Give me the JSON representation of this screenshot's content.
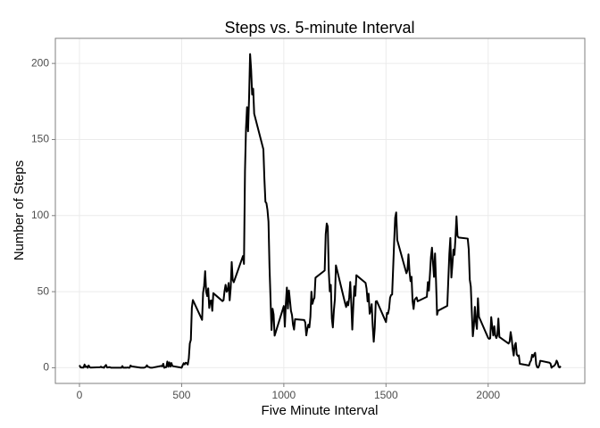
{
  "chart_data": {
    "type": "line",
    "title": "Steps vs. 5-minute Interval",
    "x_label": "Five Minute Interval",
    "y_label": "Number of Steps",
    "x": [
      0,
      5,
      10,
      15,
      20,
      25,
      30,
      35,
      40,
      45,
      50,
      55,
      100,
      105,
      110,
      115,
      120,
      125,
      130,
      135,
      140,
      145,
      150,
      155,
      200,
      205,
      210,
      215,
      220,
      225,
      230,
      235,
      240,
      245,
      250,
      255,
      300,
      305,
      310,
      315,
      320,
      325,
      330,
      335,
      340,
      345,
      350,
      355,
      400,
      405,
      410,
      415,
      420,
      425,
      430,
      435,
      440,
      445,
      450,
      455,
      500,
      505,
      510,
      515,
      520,
      525,
      530,
      535,
      540,
      545,
      550,
      555,
      600,
      605,
      610,
      615,
      620,
      625,
      630,
      635,
      640,
      645,
      650,
      655,
      700,
      705,
      710,
      715,
      720,
      725,
      730,
      735,
      740,
      745,
      750,
      755,
      800,
      805,
      810,
      815,
      820,
      825,
      830,
      835,
      840,
      845,
      850,
      855,
      900,
      905,
      910,
      915,
      920,
      925,
      930,
      935,
      940,
      945,
      950,
      955,
      1000,
      1005,
      1010,
      1015,
      1020,
      1025,
      1030,
      1035,
      1040,
      1045,
      1050,
      1055,
      1100,
      1105,
      1110,
      1115,
      1120,
      1125,
      1130,
      1135,
      1140,
      1145,
      1150,
      1155,
      1200,
      1205,
      1210,
      1215,
      1220,
      1225,
      1230,
      1235,
      1240,
      1245,
      1250,
      1255,
      1300,
      1305,
      1310,
      1315,
      1320,
      1325,
      1330,
      1335,
      1340,
      1345,
      1350,
      1355,
      1400,
      1405,
      1410,
      1415,
      1420,
      1425,
      1430,
      1435,
      1440,
      1445,
      1450,
      1455,
      1500,
      1505,
      1510,
      1515,
      1520,
      1525,
      1530,
      1535,
      1540,
      1545,
      1550,
      1555,
      1600,
      1605,
      1610,
      1615,
      1620,
      1625,
      1630,
      1635,
      1640,
      1645,
      1650,
      1655,
      1700,
      1705,
      1710,
      1715,
      1720,
      1725,
      1730,
      1735,
      1740,
      1745,
      1750,
      1755,
      1800,
      1805,
      1810,
      1815,
      1820,
      1825,
      1830,
      1835,
      1840,
      1845,
      1850,
      1855,
      1900,
      1905,
      1910,
      1915,
      1920,
      1925,
      1930,
      1935,
      1940,
      1945,
      1950,
      1955,
      2000,
      2005,
      2010,
      2015,
      2020,
      2025,
      2030,
      2035,
      2040,
      2045,
      2050,
      2055,
      2100,
      2105,
      2110,
      2115,
      2120,
      2125,
      2130,
      2135,
      2140,
      2145,
      2150,
      2155,
      2200,
      2205,
      2210,
      2215,
      2220,
      2225,
      2230,
      2235,
      2240,
      2245,
      2250,
      2255,
      2300,
      2305,
      2310,
      2315,
      2320,
      2325,
      2330,
      2335,
      2340,
      2345,
      2350,
      2355
    ],
    "values": [
      1.7,
      0.3,
      0.1,
      0.2,
      0.1,
      2.1,
      0.5,
      0.9,
      0,
      1.5,
      0.3,
      0.1,
      0.3,
      0.7,
      0.2,
      0.3,
      0,
      1.1,
      1.8,
      0.2,
      0.2,
      0.4,
      0.3,
      0,
      0,
      0,
      1.1,
      0,
      0,
      0.1,
      0,
      0.2,
      0,
      0,
      1.5,
      0.9,
      0,
      0,
      0,
      0,
      0.2,
      0.6,
      1.6,
      0.6,
      0.5,
      0.1,
      0,
      0,
      1.2,
      0.9,
      2.6,
      0,
      0.3,
      0.4,
      4.1,
      0.7,
      3.5,
      0.8,
      3.1,
      1.1,
      0,
      1.6,
      3.0,
      2.2,
      3.3,
      3.0,
      2.1,
      6.1,
      16.0,
      18.3,
      39.5,
      44.5,
      31.5,
      49.3,
      53.8,
      63.5,
      50.0,
      47.1,
      52.2,
      39.3,
      44.0,
      44.2,
      37.4,
      49.0,
      43.8,
      44.4,
      50.5,
      54.5,
      49.9,
      51.0,
      55.7,
      44.3,
      52.3,
      69.5,
      57.8,
      56.2,
      73.4,
      68.2,
      129.4,
      157.5,
      171.2,
      155.4,
      177.3,
      206.2,
      195.9,
      179.6,
      183.4,
      167.0,
      143.5,
      124.0,
      109.1,
      108.1,
      103.7,
      96.0,
      66.2,
      45.2,
      24.8,
      38.8,
      35.0,
      21.1,
      40.6,
      27.0,
      42.4,
      52.7,
      38.9,
      50.8,
      44.3,
      37.4,
      34.7,
      28.3,
      25.1,
      31.9,
      31.4,
      29.7,
      21.3,
      25.5,
      28.4,
      26.5,
      33.4,
      50.0,
      42.0,
      44.6,
      46.0,
      59.2,
      63.9,
      87.7,
      94.8,
      92.8,
      63.4,
      50.2,
      54.5,
      32.4,
      26.5,
      37.7,
      45.1,
      67.3,
      42.3,
      39.9,
      43.3,
      41.0,
      46.2,
      56.4,
      42.8,
      25.1,
      40.0,
      53.5,
      47.3,
      60.8,
      55.8,
      52.0,
      43.6,
      48.7,
      35.5,
      37.5,
      41.8,
      27.5,
      17.1,
      26.1,
      43.6,
      43.8,
      30.0,
      36.1,
      35.5,
      38.8,
      46.0,
      47.8,
      48.1,
      65.3,
      82.9,
      98.7,
      102.1,
      84.0,
      62.1,
      64.1,
      74.5,
      63.2,
      56.9,
      59.8,
      43.9,
      38.6,
      44.7,
      45.5,
      46.2,
      43.7,
      46.6,
      56.3,
      50.7,
      61.2,
      72.7,
      78.9,
      68.9,
      59.7,
      75.1,
      56.5,
      34.8,
      37.5,
      40.7,
      58.0,
      74.7,
      85.3,
      59.3,
      67.8,
      77.7,
      74.2,
      85.3,
      99.5,
      86.6,
      85.6,
      84.9,
      77.8,
      58.0,
      53.4,
      36.3,
      20.7,
      27.4,
      40.0,
      30.2,
      25.5,
      45.7,
      33.5,
      19.6,
      19.0,
      19.3,
      33.3,
      26.8,
      21.2,
      27.3,
      21.3,
      19.5,
      21.3,
      32.3,
      20.2,
      15.9,
      17.2,
      23.5,
      19.2,
      12.5,
      8.0,
      14.7,
      16.3,
      8.7,
      7.8,
      8.1,
      2.6,
      1.5,
      3.7,
      4.8,
      8.5,
      7.1,
      8.7,
      9.8,
      2.2,
      0.3,
      0.1,
      1.6,
      4.6,
      3.3,
      2.8,
      0,
      0.8,
      1.0,
      1.6,
      2.6,
      4.7,
      3.3,
      0.6,
      0.2,
      1.1
    ],
    "color": "#000000",
    "xlim": [
      -118,
      2473
    ],
    "ylim": [
      -10.3,
      216.5
    ],
    "xticks": [
      0,
      500,
      1000,
      1500,
      2000
    ],
    "yticks": [
      0,
      50,
      100,
      150,
      200
    ],
    "grid": true
  }
}
